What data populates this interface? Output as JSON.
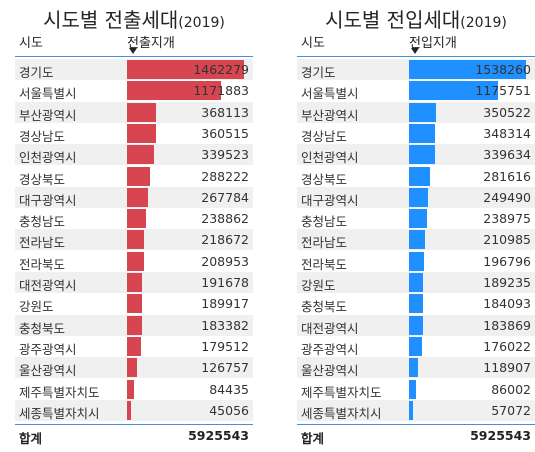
{
  "left": {
    "title": "시도별 전출세대",
    "year": "(2019)",
    "col_region": "시도",
    "col_value": "전출지개",
    "bar_color": "#d64550",
    "max": 1462279,
    "rows": [
      {
        "region": "경기도",
        "value": "1462279",
        "n": 1462279
      },
      {
        "region": "서울특별시",
        "value": "1171883",
        "n": 1171883
      },
      {
        "region": "부산광역시",
        "value": "368113",
        "n": 368113
      },
      {
        "region": "경상남도",
        "value": "360515",
        "n": 360515
      },
      {
        "region": "인천광역시",
        "value": "339523",
        "n": 339523
      },
      {
        "region": "경상북도",
        "value": "288222",
        "n": 288222
      },
      {
        "region": "대구광역시",
        "value": "267784",
        "n": 267784
      },
      {
        "region": "충청남도",
        "value": "238862",
        "n": 238862
      },
      {
        "region": "전라남도",
        "value": "218672",
        "n": 218672
      },
      {
        "region": "전라북도",
        "value": "208953",
        "n": 208953
      },
      {
        "region": "대전광역시",
        "value": "191678",
        "n": 191678
      },
      {
        "region": "강원도",
        "value": "189917",
        "n": 189917
      },
      {
        "region": "충청북도",
        "value": "183382",
        "n": 183382
      },
      {
        "region": "광주광역시",
        "value": "179512",
        "n": 179512
      },
      {
        "region": "울산광역시",
        "value": "126757",
        "n": 126757
      },
      {
        "region": "제주특별자치도",
        "value": "84435",
        "n": 84435
      },
      {
        "region": "세종특별자치시",
        "value": "45056",
        "n": 45056
      }
    ],
    "total_label": "합계",
    "total_value": "5925543"
  },
  "right": {
    "title": "시도별 전입세대",
    "year": "(2019)",
    "col_region": "시도",
    "col_value": "전입지개",
    "bar_color": "#1e90ff",
    "max": 1538260,
    "rows": [
      {
        "region": "경기도",
        "value": "1538260",
        "n": 1538260
      },
      {
        "region": "서울특별시",
        "value": "1175751",
        "n": 1175751
      },
      {
        "region": "부산광역시",
        "value": "350522",
        "n": 350522
      },
      {
        "region": "경상남도",
        "value": "348314",
        "n": 348314
      },
      {
        "region": "인천광역시",
        "value": "339634",
        "n": 339634
      },
      {
        "region": "경상북도",
        "value": "281616",
        "n": 281616
      },
      {
        "region": "대구광역시",
        "value": "249490",
        "n": 249490
      },
      {
        "region": "충청남도",
        "value": "238975",
        "n": 238975
      },
      {
        "region": "전라남도",
        "value": "210985",
        "n": 210985
      },
      {
        "region": "전라북도",
        "value": "196796",
        "n": 196796
      },
      {
        "region": "강원도",
        "value": "189235",
        "n": 189235
      },
      {
        "region": "충청북도",
        "value": "184093",
        "n": 184093
      },
      {
        "region": "대전광역시",
        "value": "183869",
        "n": 183869
      },
      {
        "region": "광주광역시",
        "value": "176022",
        "n": 176022
      },
      {
        "region": "울산광역시",
        "value": "118907",
        "n": 118907
      },
      {
        "region": "제주특별자치도",
        "value": "86002",
        "n": 86002
      },
      {
        "region": "세종특별자치시",
        "value": "57072",
        "n": 57072
      }
    ],
    "total_label": "합계",
    "total_value": "5925543"
  }
}
